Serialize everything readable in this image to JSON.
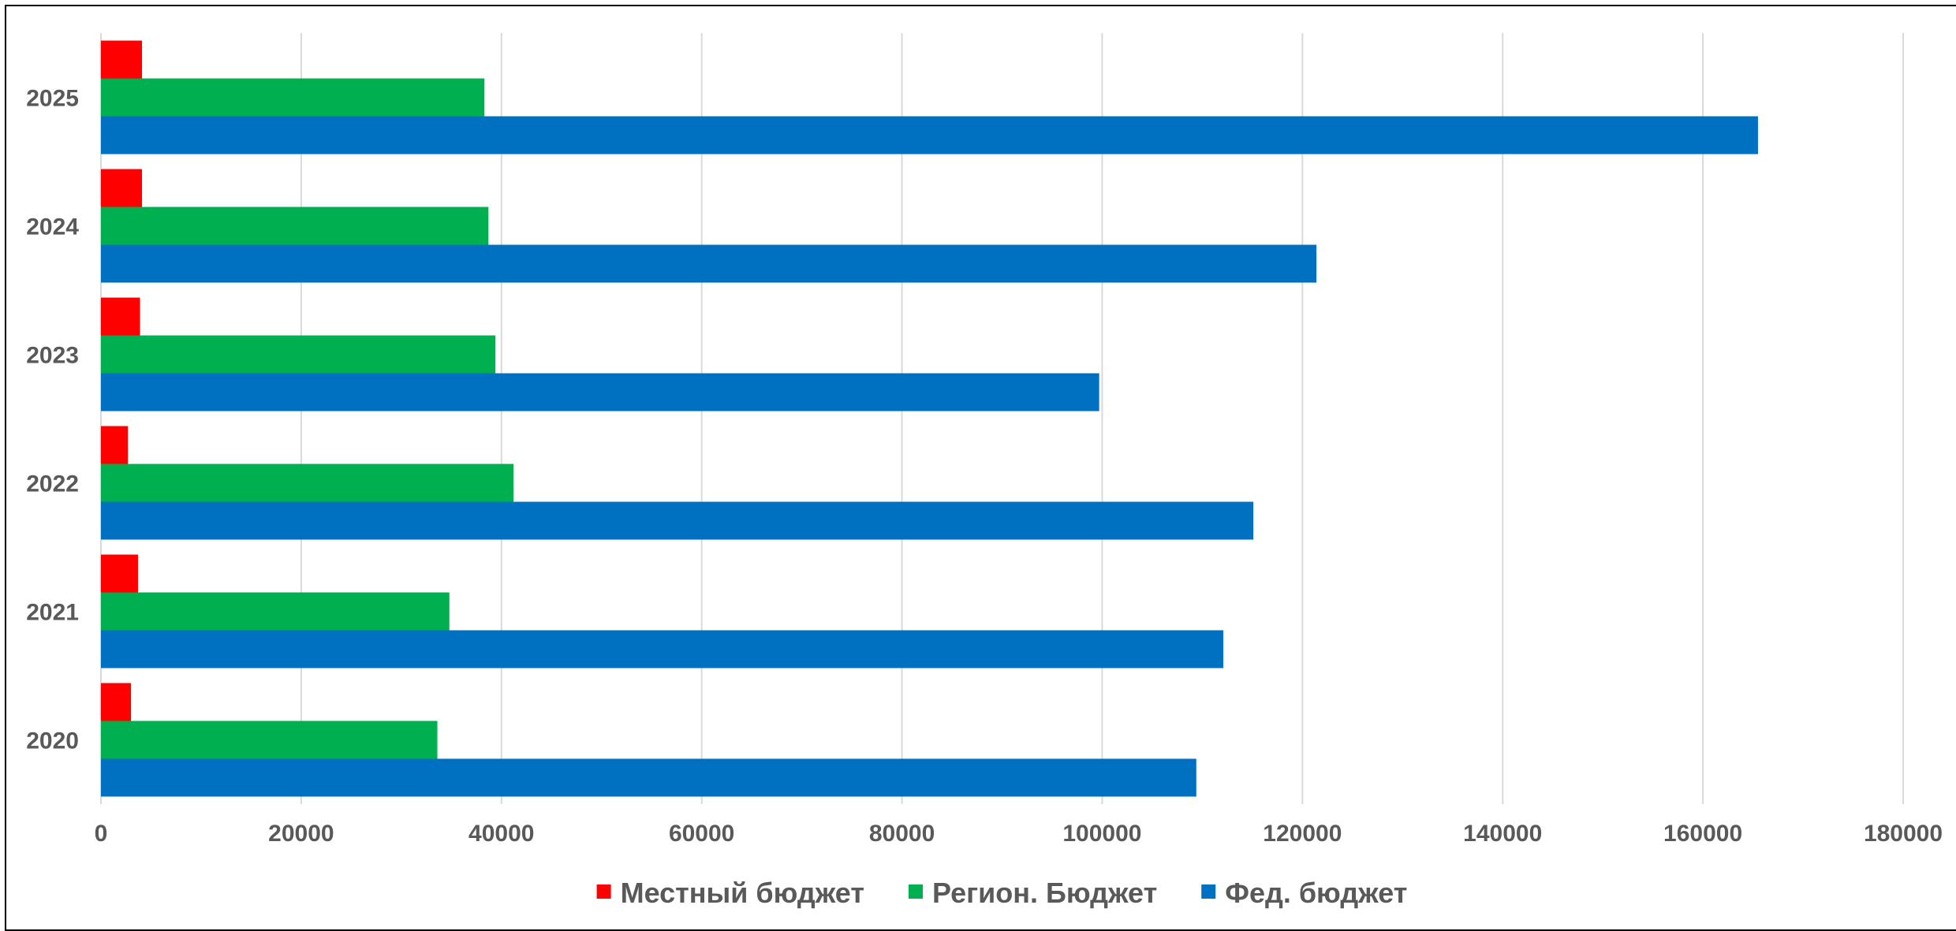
{
  "chart_data": {
    "type": "bar",
    "orientation": "horizontal",
    "title": "",
    "xlabel": "",
    "ylabel": "",
    "categories": [
      "2020",
      "2021",
      "2022",
      "2023",
      "2024",
      "2025"
    ],
    "series": [
      {
        "name": "Местный бюджет",
        "color": "#FF0000",
        "values": [
          3000,
          3700,
          2700,
          3900,
          4100,
          4100
        ]
      },
      {
        "name": "Регион. Бюджет",
        "color": "#00B050",
        "values": [
          33600,
          34800,
          41200,
          39400,
          38700,
          38300
        ]
      },
      {
        "name": "Фед. бюджет",
        "color": "#0070C0",
        "values": [
          109400,
          112100,
          115100,
          99700,
          121400,
          165500
        ]
      }
    ],
    "xlim": [
      0,
      180000
    ],
    "xticks": [
      "0",
      "20000",
      "40000",
      "60000",
      "80000",
      "100000",
      "120000",
      "140000",
      "160000",
      "180000"
    ],
    "grid": "vertical",
    "legend_position": "bottom"
  }
}
